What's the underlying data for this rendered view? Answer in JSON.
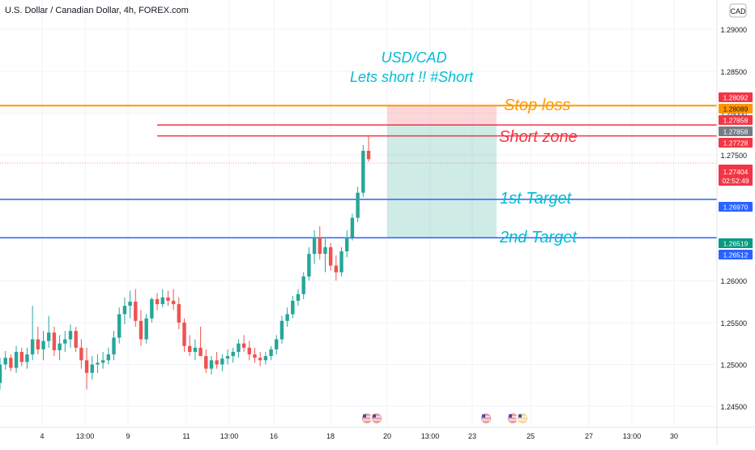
{
  "header": {
    "symbol_title": "U.S. Dollar / Canadian Dollar, 4h, FOREX.com",
    "currency_badge": "CAD"
  },
  "chart_data": {
    "type": "candlestick",
    "title": "USD/CAD",
    "subtitle": "Lets short !! #Short",
    "y_range": [
      1.2425,
      1.2935
    ],
    "y_ticks": [
      "1.29000",
      "1.28500",
      "1.28000",
      "1.27500",
      "1.26000",
      "1.25500",
      "1.25000",
      "1.24500"
    ],
    "x_ticks": [
      "4",
      "13:00",
      "9",
      "11",
      "13:00",
      "16",
      "18",
      "20",
      "13:00",
      "23",
      "25",
      "27",
      "13:00",
      "30"
    ],
    "colors": {
      "up": "#26a69a",
      "down": "#ef5350",
      "stop": "#ff9800",
      "short": "#f23645",
      "target": "#2962ff",
      "annotation_cyan": "#00bcd4"
    },
    "candles": [
      [
        1.2478,
        1.2508,
        1.247,
        1.25
      ],
      [
        1.25,
        1.2516,
        1.2494,
        1.2508
      ],
      [
        1.2508,
        1.2512,
        1.2492,
        1.2496
      ],
      [
        1.2496,
        1.2522,
        1.249,
        1.2515
      ],
      [
        1.2515,
        1.252,
        1.2498,
        1.2503
      ],
      [
        1.2503,
        1.252,
        1.2495,
        1.2512
      ],
      [
        1.2512,
        1.257,
        1.2505,
        1.253
      ],
      [
        1.253,
        1.2545,
        1.2512,
        1.2518
      ],
      [
        1.2518,
        1.254,
        1.2505,
        1.2528
      ],
      [
        1.2528,
        1.2558,
        1.252,
        1.2538
      ],
      [
        1.2538,
        1.2545,
        1.251,
        1.2517
      ],
      [
        1.2517,
        1.2535,
        1.2505,
        1.2525
      ],
      [
        1.2525,
        1.254,
        1.2515,
        1.253
      ],
      [
        1.253,
        1.2548,
        1.252,
        1.254
      ],
      [
        1.254,
        1.2545,
        1.2515,
        1.252
      ],
      [
        1.252,
        1.253,
        1.2495,
        1.2505
      ],
      [
        1.2505,
        1.252,
        1.247,
        1.249
      ],
      [
        1.249,
        1.251,
        1.2482,
        1.25
      ],
      [
        1.25,
        1.2512,
        1.249,
        1.2502
      ],
      [
        1.2502,
        1.2515,
        1.2495,
        1.2505
      ],
      [
        1.2505,
        1.252,
        1.25,
        1.2512
      ],
      [
        1.2512,
        1.254,
        1.2505,
        1.2532
      ],
      [
        1.2532,
        1.2568,
        1.2525,
        1.256
      ],
      [
        1.256,
        1.258,
        1.2548,
        1.257
      ],
      [
        1.257,
        1.2588,
        1.2555,
        1.2575
      ],
      [
        1.2575,
        1.259,
        1.2545,
        1.2552
      ],
      [
        1.2552,
        1.2565,
        1.2522,
        1.253
      ],
      [
        1.253,
        1.256,
        1.2525,
        1.2555
      ],
      [
        1.2555,
        1.258,
        1.255,
        1.2578
      ],
      [
        1.2578,
        1.2585,
        1.2565,
        1.2572
      ],
      [
        1.2572,
        1.259,
        1.2568,
        1.258
      ],
      [
        1.258,
        1.2588,
        1.257,
        1.2576
      ],
      [
        1.2576,
        1.259,
        1.2565,
        1.2572
      ],
      [
        1.2572,
        1.258,
        1.2542,
        1.255
      ],
      [
        1.255,
        1.2555,
        1.2515,
        1.2522
      ],
      [
        1.2522,
        1.2535,
        1.251,
        1.2515
      ],
      [
        1.2515,
        1.253,
        1.2505,
        1.252
      ],
      [
        1.252,
        1.2545,
        1.251,
        1.251
      ],
      [
        1.251,
        1.2518,
        1.249,
        1.2495
      ],
      [
        1.2495,
        1.251,
        1.2488,
        1.2505
      ],
      [
        1.2505,
        1.2515,
        1.2495,
        1.25
      ],
      [
        1.25,
        1.2512,
        1.2492,
        1.2507
      ],
      [
        1.2507,
        1.2518,
        1.25,
        1.251
      ],
      [
        1.251,
        1.252,
        1.2502,
        1.2515
      ],
      [
        1.2515,
        1.253,
        1.2508,
        1.2525
      ],
      [
        1.2525,
        1.2535,
        1.2515,
        1.252
      ],
      [
        1.252,
        1.2528,
        1.2505,
        1.2512
      ],
      [
        1.2512,
        1.252,
        1.2502,
        1.2508
      ],
      [
        1.2508,
        1.2515,
        1.2498,
        1.2505
      ],
      [
        1.2505,
        1.2515,
        1.25,
        1.251
      ],
      [
        1.251,
        1.2522,
        1.2505,
        1.2518
      ],
      [
        1.2518,
        1.2535,
        1.2512,
        1.253
      ],
      [
        1.253,
        1.2558,
        1.2525,
        1.2552
      ],
      [
        1.2552,
        1.2568,
        1.2545,
        1.256
      ],
      [
        1.256,
        1.2582,
        1.2555,
        1.2576
      ],
      [
        1.2576,
        1.259,
        1.257,
        1.2584
      ],
      [
        1.2584,
        1.261,
        1.2578,
        1.2605
      ],
      [
        1.2605,
        1.264,
        1.26,
        1.2632
      ],
      [
        1.2632,
        1.266,
        1.262,
        1.2652
      ],
      [
        1.2652,
        1.2665,
        1.2625,
        1.2632
      ],
      [
        1.2632,
        1.265,
        1.261,
        1.264
      ],
      [
        1.264,
        1.2645,
        1.2612,
        1.2618
      ],
      [
        1.2618,
        1.263,
        1.26,
        1.261
      ],
      [
        1.261,
        1.264,
        1.2605,
        1.2635
      ],
      [
        1.2635,
        1.266,
        1.2628,
        1.2652
      ],
      [
        1.2652,
        1.268,
        1.2648,
        1.2675
      ],
      [
        1.2675,
        1.2712,
        1.267,
        1.2705
      ],
      [
        1.2705,
        1.2762,
        1.27,
        1.2755
      ],
      [
        1.2755,
        1.2772,
        1.2742,
        1.2745
      ]
    ],
    "levels": [
      {
        "name": "Stop loss",
        "price_label": "1.28089"
      },
      {
        "name": "Short zone upper",
        "price_label": "1.27858"
      },
      {
        "name": "Short zone lower",
        "price_label": "1.27728"
      },
      {
        "name": "1st Target",
        "price_label": "1.26970"
      },
      {
        "name": "2nd Target",
        "price_label": "1.26512"
      }
    ],
    "price_badges": {
      "top": "1.28092",
      "stop": "1.28089",
      "short_upper": "1.27858",
      "short_upper_grey": "1.27858",
      "short_lower": "1.27728",
      "last_price": "1.27404",
      "countdown": "02:52:49",
      "target1": "1.26970",
      "target2_green": "1.26519",
      "target2_blue": "1.26512"
    },
    "annotations": {
      "stop": "Stop loss",
      "short": "Short zone",
      "t1": "1st Target",
      "t2": "2nd Target"
    },
    "event_markers": [
      "us-flag-icon",
      "us-flag-icon",
      "us-ca-flags-icon"
    ]
  }
}
